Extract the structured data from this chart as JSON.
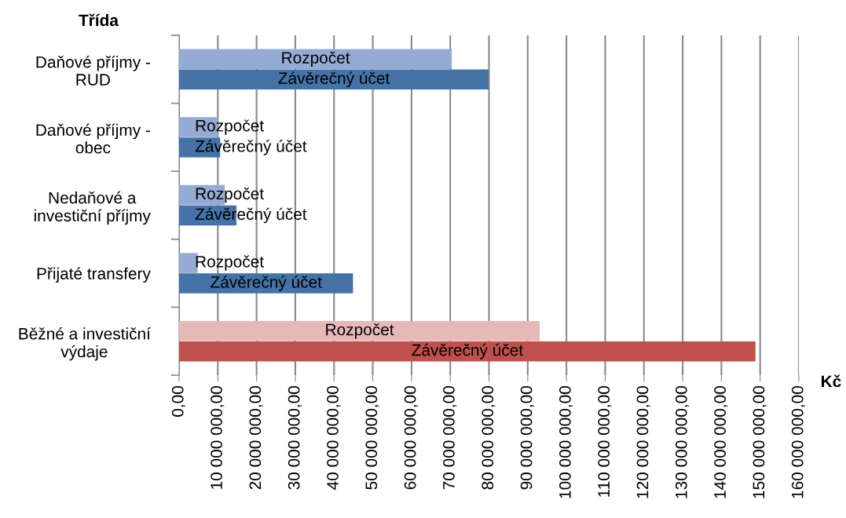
{
  "chart_data": {
    "type": "bar",
    "orientation": "horizontal",
    "ylabel": "Třída",
    "xlabel": "Kč",
    "categories": [
      "Daňové příjmy -\nRUD",
      "Daňové příjmy -\nobec",
      "Nedaňové a\ninvestiční příjmy",
      "Přijaté transfery",
      "Běžné a investiční\nvýdaje"
    ],
    "series": [
      {
        "name": "Rozpočet",
        "colors": [
          "#95abd3",
          "#95abd3",
          "#95abd3",
          "#95abd3",
          "#e6b9b8"
        ],
        "values": [
          70400000,
          10000000,
          11800000,
          4800000,
          93100000
        ]
      },
      {
        "name": "Závěrečný účet",
        "colors": [
          "#4572a7",
          "#4572a7",
          "#4572a7",
          "#4572a7",
          "#c0504d"
        ],
        "values": [
          79900000,
          10600000,
          14800000,
          44900000,
          148800000
        ]
      }
    ],
    "xlim": [
      0,
      160000000
    ],
    "xticks": [
      {
        "value": 0,
        "label": "0,00"
      },
      {
        "value": 10000000,
        "label": "10 000 000,00"
      },
      {
        "value": 20000000,
        "label": "20 000 000,00"
      },
      {
        "value": 30000000,
        "label": "30 000 000,00"
      },
      {
        "value": 40000000,
        "label": "40 000 000,00"
      },
      {
        "value": 50000000,
        "label": "50 000 000,00"
      },
      {
        "value": 60000000,
        "label": "60 000 000,00"
      },
      {
        "value": 70000000,
        "label": "70 000 000,00"
      },
      {
        "value": 80000000,
        "label": "80 000 000,00"
      },
      {
        "value": 90000000,
        "label": "90 000 000,00"
      },
      {
        "value": 100000000,
        "label": "100 000 000,00"
      },
      {
        "value": 110000000,
        "label": "110 000 000,00"
      },
      {
        "value": 120000000,
        "label": "120 000 000,00"
      },
      {
        "value": 130000000,
        "label": "130 000 000,00"
      },
      {
        "value": 140000000,
        "label": "140 000 000,00"
      },
      {
        "value": 150000000,
        "label": "150 000 000,00"
      },
      {
        "value": 160000000,
        "label": "160 000 000,00"
      }
    ],
    "grid": "x",
    "legend": false
  }
}
